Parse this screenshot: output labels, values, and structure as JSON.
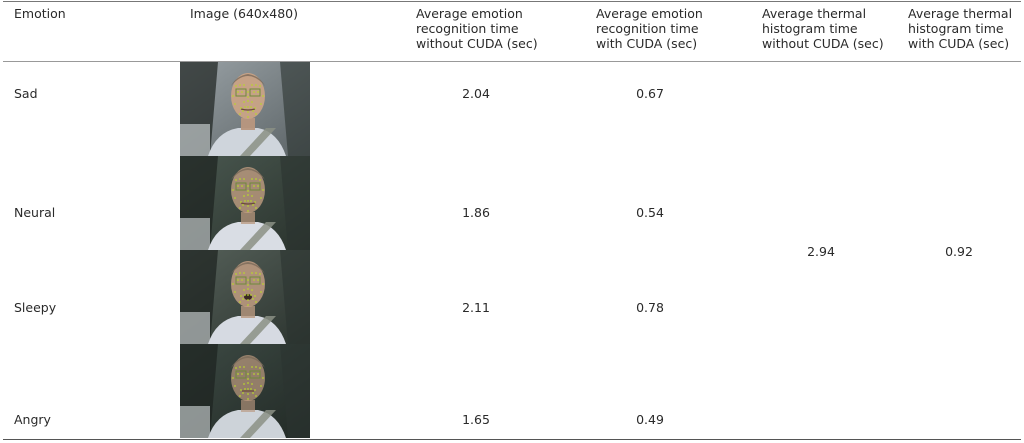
{
  "table": {
    "headers": [
      "Emotion",
      "Image (640x480)",
      "Average emotion recognition time without CUDA (sec)",
      "Average emotion recognition time with CUDA (sec)",
      "Average thermal histogram time without CUDA  (sec)",
      "Average thermal histogram time with CUDA (sec)"
    ],
    "header_lines": {
      "emotion": "Emotion",
      "image": "Image (640x480)",
      "c3": [
        "Average emotion",
        "recognition time",
        "without CUDA (sec)"
      ],
      "c4": [
        "Average emotion",
        "recognition time",
        "with CUDA (sec)"
      ],
      "c5": [
        "Average thermal",
        "histogram time",
        "without CUDA  (sec)"
      ],
      "c6": [
        "Average thermal",
        "histogram time",
        "with CUDA (sec)"
      ]
    },
    "rows": [
      {
        "emotion": "Sad",
        "without_cuda": "2.04",
        "with_cuda": "0.67"
      },
      {
        "emotion": "Neural",
        "without_cuda": "1.86",
        "with_cuda": "0.54"
      },
      {
        "emotion": "Sleepy",
        "without_cuda": "2.11",
        "with_cuda": "0.78"
      },
      {
        "emotion": "Angry",
        "without_cuda": "1.65",
        "with_cuda": "0.49"
      }
    ],
    "thermal": {
      "without_cuda": "2.94",
      "with_cuda": "0.92"
    }
  }
}
